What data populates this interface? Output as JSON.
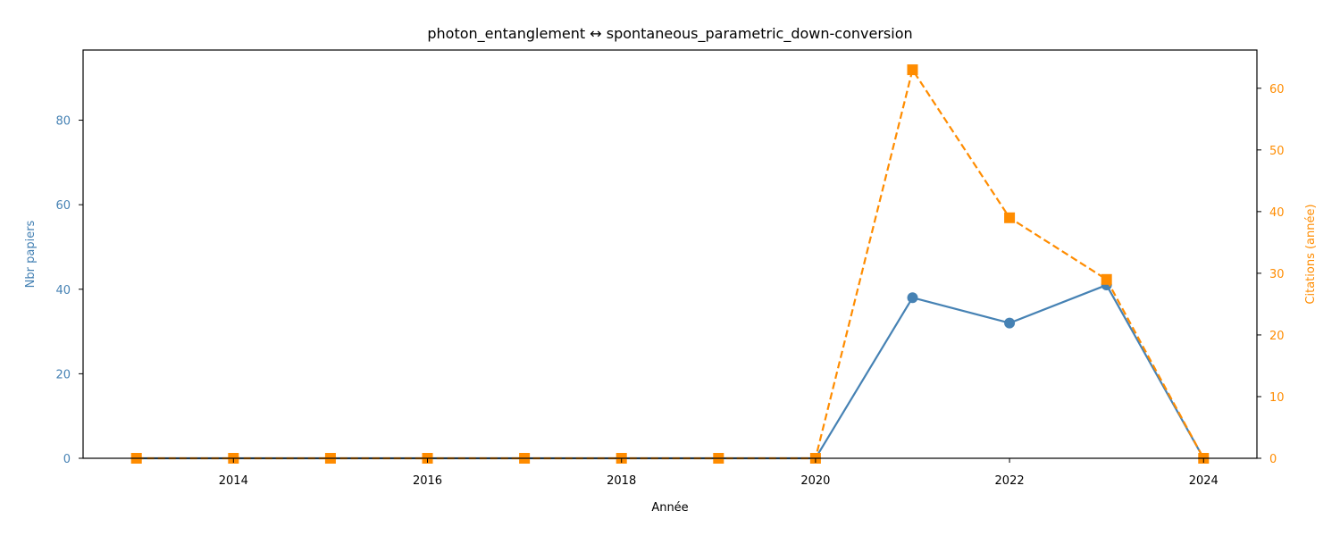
{
  "chart_data": {
    "type": "line",
    "title": "photon_entanglement  ↔  spontaneous_parametric_down-conversion",
    "xlabel": "Année",
    "ylabel_left": "Nbr papiers",
    "ylabel_right": "Citations (année)",
    "x": [
      2013,
      2014,
      2015,
      2016,
      2017,
      2018,
      2019,
      2020,
      2021,
      2022,
      2023,
      2024
    ],
    "xlim": [
      2012.45,
      2024.55
    ],
    "xticks": [
      2014,
      2016,
      2018,
      2020,
      2022,
      2024
    ],
    "ylim_left": [
      0,
      96.6
    ],
    "yticks_left": [
      0,
      20,
      40,
      60,
      80
    ],
    "ylim_right": [
      0,
      66.2
    ],
    "yticks_right": [
      0,
      10,
      20,
      30,
      40,
      50,
      60
    ],
    "grid": false,
    "series": [
      {
        "axis": "left",
        "values": [
          0,
          0,
          0,
          0,
          0,
          0,
          0,
          0,
          38,
          32,
          41,
          0
        ],
        "color": "#4682b4",
        "linestyle": "solid",
        "marker": "circle"
      },
      {
        "axis": "right",
        "values": [
          0,
          0,
          0,
          0,
          0,
          0,
          0,
          0,
          63,
          39,
          29,
          0
        ],
        "color": "#ff8c00",
        "linestyle": "dashed",
        "marker": "square"
      }
    ]
  }
}
